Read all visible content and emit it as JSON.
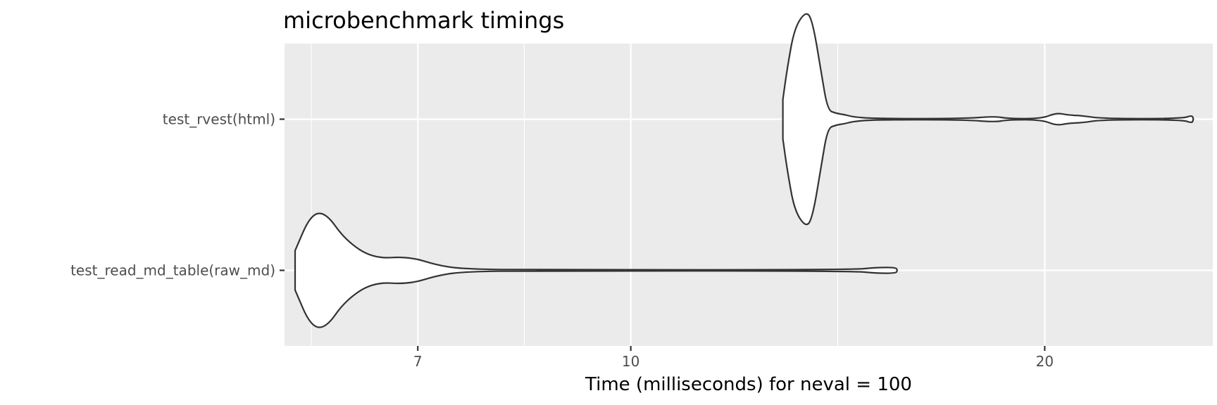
{
  "chart_data": {
    "type": "violin",
    "title": "microbenchmark timings",
    "xlabel": "Time (milliseconds) for neval = 100",
    "ylabel": "",
    "x_scale": "log",
    "xlim": [
      5.6,
      26.5
    ],
    "x_ticks": [
      7,
      10,
      20
    ],
    "x_tick_labels": [
      "7",
      "10",
      "20"
    ],
    "categories": [
      "test_rvest(html)",
      "test_read_md_table(raw_md)"
    ],
    "grid": true,
    "legend": "none",
    "colors": {
      "panel": "#ebebeb",
      "grid": "#ffffff",
      "violin_fill": "#ffffff",
      "violin_stroke": "#333333",
      "tick_text": "#4d4d4d"
    },
    "series": [
      {
        "name": "test_rvest(html)",
        "density": [
          [
            12.9,
            0.17
          ],
          [
            13.0,
            0.45
          ],
          [
            13.15,
            0.78
          ],
          [
            13.4,
            0.93
          ],
          [
            13.55,
            0.86
          ],
          [
            13.75,
            0.42
          ],
          [
            13.9,
            0.08
          ],
          [
            14.1,
            0.05
          ],
          [
            14.3,
            0.04
          ],
          [
            14.5,
            0.02
          ],
          [
            15.0,
            0.005
          ],
          [
            17.5,
            0.005
          ],
          [
            18.4,
            0.025
          ],
          [
            18.8,
            0.005
          ],
          [
            19.9,
            0.005
          ],
          [
            20.4,
            0.055
          ],
          [
            20.8,
            0.035
          ],
          [
            21.3,
            0.03
          ],
          [
            22.0,
            0.005
          ],
          [
            25.2,
            0.005
          ],
          [
            25.6,
            0.035
          ],
          [
            25.65,
            0.0
          ]
        ]
      },
      {
        "name": "test_read_md_table(raw_md)",
        "density": [
          [
            5.7,
            0.17
          ],
          [
            5.85,
            0.48
          ],
          [
            6.0,
            0.5
          ],
          [
            6.2,
            0.26
          ],
          [
            6.5,
            0.1
          ],
          [
            6.9,
            0.12
          ],
          [
            7.25,
            0.04
          ],
          [
            7.6,
            0.01
          ],
          [
            8.5,
            0.005
          ],
          [
            14.5,
            0.005
          ],
          [
            15.1,
            0.025
          ],
          [
            15.6,
            0.025
          ],
          [
            15.62,
            0.0
          ]
        ]
      }
    ]
  }
}
